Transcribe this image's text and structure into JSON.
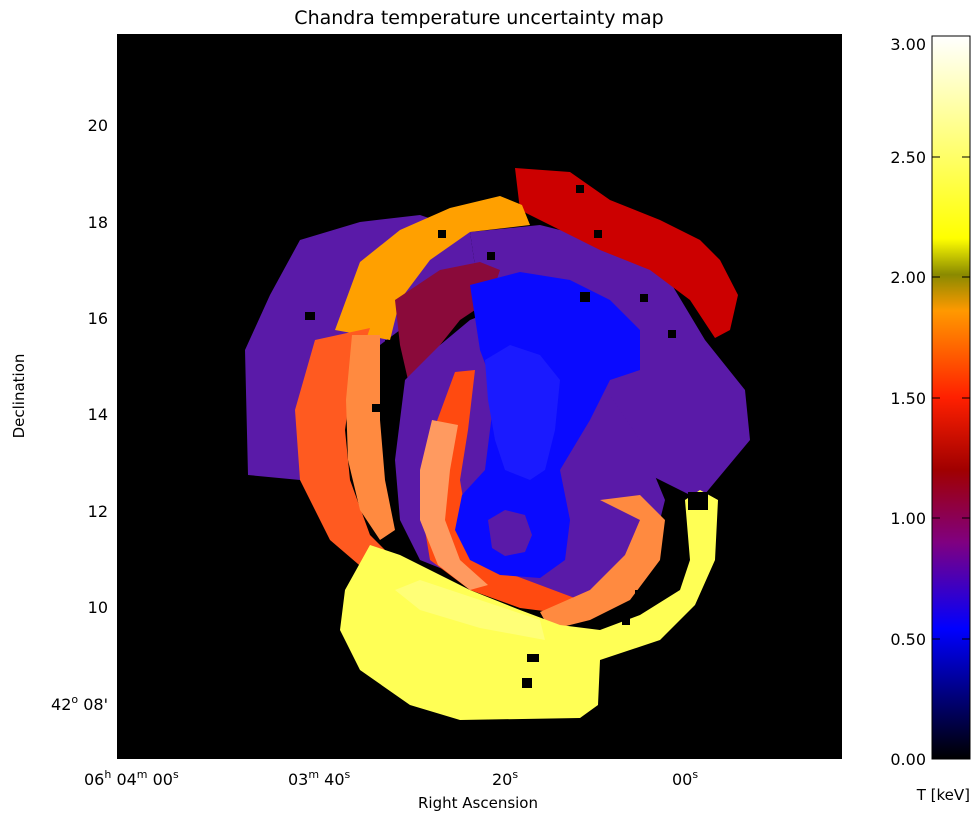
{
  "chart_data": {
    "type": "heatmap",
    "title": "Chandra temperature uncertainty map",
    "xlabel": "Right Ascension",
    "ylabel": "Declination",
    "x_ticks": [
      {
        "h": "06",
        "m": "04",
        "s": "00"
      },
      {
        "m": "03",
        "s": "40"
      },
      {
        "s": "20"
      },
      {
        "s": "00"
      }
    ],
    "y_ticks": [
      "20",
      "18",
      "16",
      "14",
      "12",
      "10"
    ],
    "y_tick_first": {
      "deg": "42",
      "min": "08'"
    },
    "colorbar": {
      "label": "T [keV]",
      "range": [
        0.0,
        3.0
      ],
      "tick_labels": [
        "0.00",
        "0.50",
        "1.00",
        "1.50",
        "2.00",
        "2.50",
        "3.00"
      ],
      "colormap": [
        "#000000",
        "#0000ff",
        "#800080",
        "#a00000",
        "#ff2000",
        "#ff9900",
        "#ffff66",
        "#ffffff"
      ]
    },
    "regions": [
      {
        "name": "outer-west-shell",
        "value": 0.85,
        "color": "#5a1aa8"
      },
      {
        "name": "outer-east-shell",
        "value": 0.85,
        "color": "#5a1aa8"
      },
      {
        "name": "north-orange-arc",
        "value": 1.9,
        "color": "#ffa000"
      },
      {
        "name": "north-red-arc",
        "value": 1.2,
        "color": "#cc0000"
      },
      {
        "name": "west-orange-red-arc",
        "value": 1.6,
        "color": "#ff5a20"
      },
      {
        "name": "west-light-orange-arc",
        "value": 1.75,
        "color": "#ff8a40"
      },
      {
        "name": "south-yellow-arc",
        "value": 2.4,
        "color": "#ffff55"
      },
      {
        "name": "inner-dark-red-arc",
        "value": 1.05,
        "color": "#8a0a3a"
      },
      {
        "name": "inner-red-arc",
        "value": 1.55,
        "color": "#ff4a10"
      },
      {
        "name": "inner-salmon-arc",
        "value": 1.75,
        "color": "#ff9a60"
      },
      {
        "name": "core-purple",
        "value": 0.85,
        "color": "#5a1aa8"
      },
      {
        "name": "core-blue",
        "value": 0.55,
        "color": "#0a0aff"
      }
    ]
  }
}
